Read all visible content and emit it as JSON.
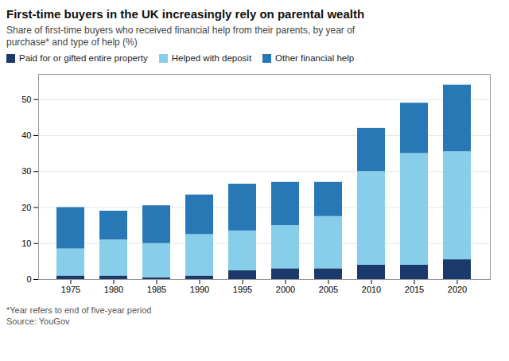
{
  "chart_data": {
    "type": "bar",
    "stacked": true,
    "title": "First-time buyers in the UK increasingly rely on parental wealth",
    "subtitle": "Share of first-time buyers who received financial help from their parents, by year of\npurchase* and type of help (%)",
    "footnote": "*Year refers to end of five-year period\nSource: YouGov",
    "categories": [
      "1975",
      "1980",
      "1985",
      "1990",
      "1995",
      "2000",
      "2005",
      "2010",
      "2015",
      "2020"
    ],
    "series": [
      {
        "name": "Paid for or gifted entire property",
        "color": "#1b3a6b",
        "values": [
          1.0,
          1.0,
          0.5,
          1.0,
          2.5,
          3.0,
          3.0,
          4.0,
          4.0,
          5.5
        ]
      },
      {
        "name": "Helped with deposit",
        "color": "#87ceeb",
        "values": [
          7.5,
          10.0,
          9.5,
          11.5,
          11.0,
          12.0,
          14.5,
          26.0,
          31.0,
          30.0
        ]
      },
      {
        "name": "Other financial help",
        "color": "#2878b5",
        "values": [
          11.5,
          8.0,
          10.5,
          11.0,
          13.0,
          12.0,
          9.5,
          12.0,
          14.0,
          18.5
        ]
      }
    ],
    "ylim": [
      0,
      57
    ],
    "yticks": [
      0,
      10,
      20,
      30,
      40,
      50
    ],
    "grid": true,
    "legend": "top"
  }
}
